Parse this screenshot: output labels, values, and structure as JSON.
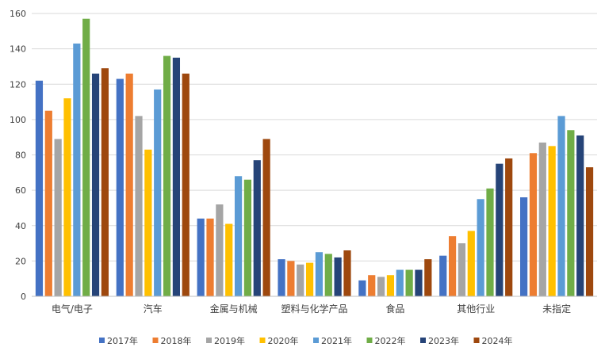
{
  "chart_data": {
    "type": "bar",
    "title": "",
    "xlabel": "",
    "ylabel": "",
    "ylim": [
      0,
      160
    ],
    "yticks": [
      0,
      20,
      40,
      60,
      80,
      100,
      120,
      140,
      160
    ],
    "grid": true,
    "legend_position": "bottom",
    "categories": [
      "电气/电子",
      "汽车",
      "金属与机械",
      "塑料与化学产品",
      "食品",
      "其他行业",
      "未指定"
    ],
    "series": [
      {
        "name": "2017年",
        "color": "#4472C4",
        "values": [
          122,
          123,
          44,
          21,
          9,
          23,
          56
        ]
      },
      {
        "name": "2018年",
        "color": "#ED7D31",
        "values": [
          105,
          126,
          44,
          20,
          12,
          34,
          81
        ]
      },
      {
        "name": "2019年",
        "color": "#A5A5A5",
        "values": [
          89,
          102,
          52,
          18,
          11,
          30,
          87
        ]
      },
      {
        "name": "2020年",
        "color": "#FFC000",
        "values": [
          112,
          83,
          41,
          19,
          12,
          37,
          85
        ]
      },
      {
        "name": "2021年",
        "color": "#5B9BD5",
        "values": [
          143,
          117,
          68,
          25,
          15,
          55,
          102
        ]
      },
      {
        "name": "2022年",
        "color": "#70AD47",
        "values": [
          157,
          136,
          66,
          24,
          15,
          61,
          94
        ]
      },
      {
        "name": "2023年",
        "color": "#264478",
        "values": [
          126,
          135,
          77,
          22,
          15,
          75,
          91
        ]
      },
      {
        "name": "2024年",
        "color": "#9E480E",
        "values": [
          129,
          126,
          89,
          26,
          21,
          78,
          73
        ]
      }
    ]
  }
}
